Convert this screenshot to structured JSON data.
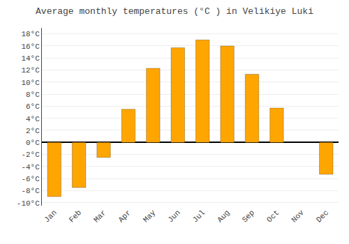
{
  "chart_data": {
    "type": "bar",
    "title": "Average monthly temperatures (°C ) in Velikiye Luki",
    "categories": [
      "Jan",
      "Feb",
      "Mar",
      "Apr",
      "May",
      "Jun",
      "Jul",
      "Aug",
      "Sep",
      "Oct",
      "Nov",
      "Dec"
    ],
    "values": [
      -9,
      -7.5,
      -2.5,
      5.5,
      12.3,
      15.7,
      17.0,
      16.0,
      11.3,
      5.7,
      0,
      -5.3
    ],
    "color": "#FFA500",
    "ylim": [
      -10.5,
      19
    ],
    "yticks": [
      {
        "value": -10,
        "label": "-10°C"
      },
      {
        "value": -8,
        "label": "-8°C"
      },
      {
        "value": -6,
        "label": "-6°C"
      },
      {
        "value": -4,
        "label": "-4°C"
      },
      {
        "value": -2,
        "label": "-2°C"
      },
      {
        "value": 0,
        "label": "0°C"
      },
      {
        "value": 2,
        "label": "2°C"
      },
      {
        "value": 4,
        "label": "4°C"
      },
      {
        "value": 6,
        "label": "6°C"
      },
      {
        "value": 8,
        "label": "8°C"
      },
      {
        "value": 10,
        "label": "10°C"
      },
      {
        "value": 12,
        "label": "12°C"
      },
      {
        "value": 14,
        "label": "14°C"
      },
      {
        "value": 16,
        "label": "16°C"
      },
      {
        "value": 18,
        "label": "18°C"
      }
    ],
    "grid": true
  }
}
